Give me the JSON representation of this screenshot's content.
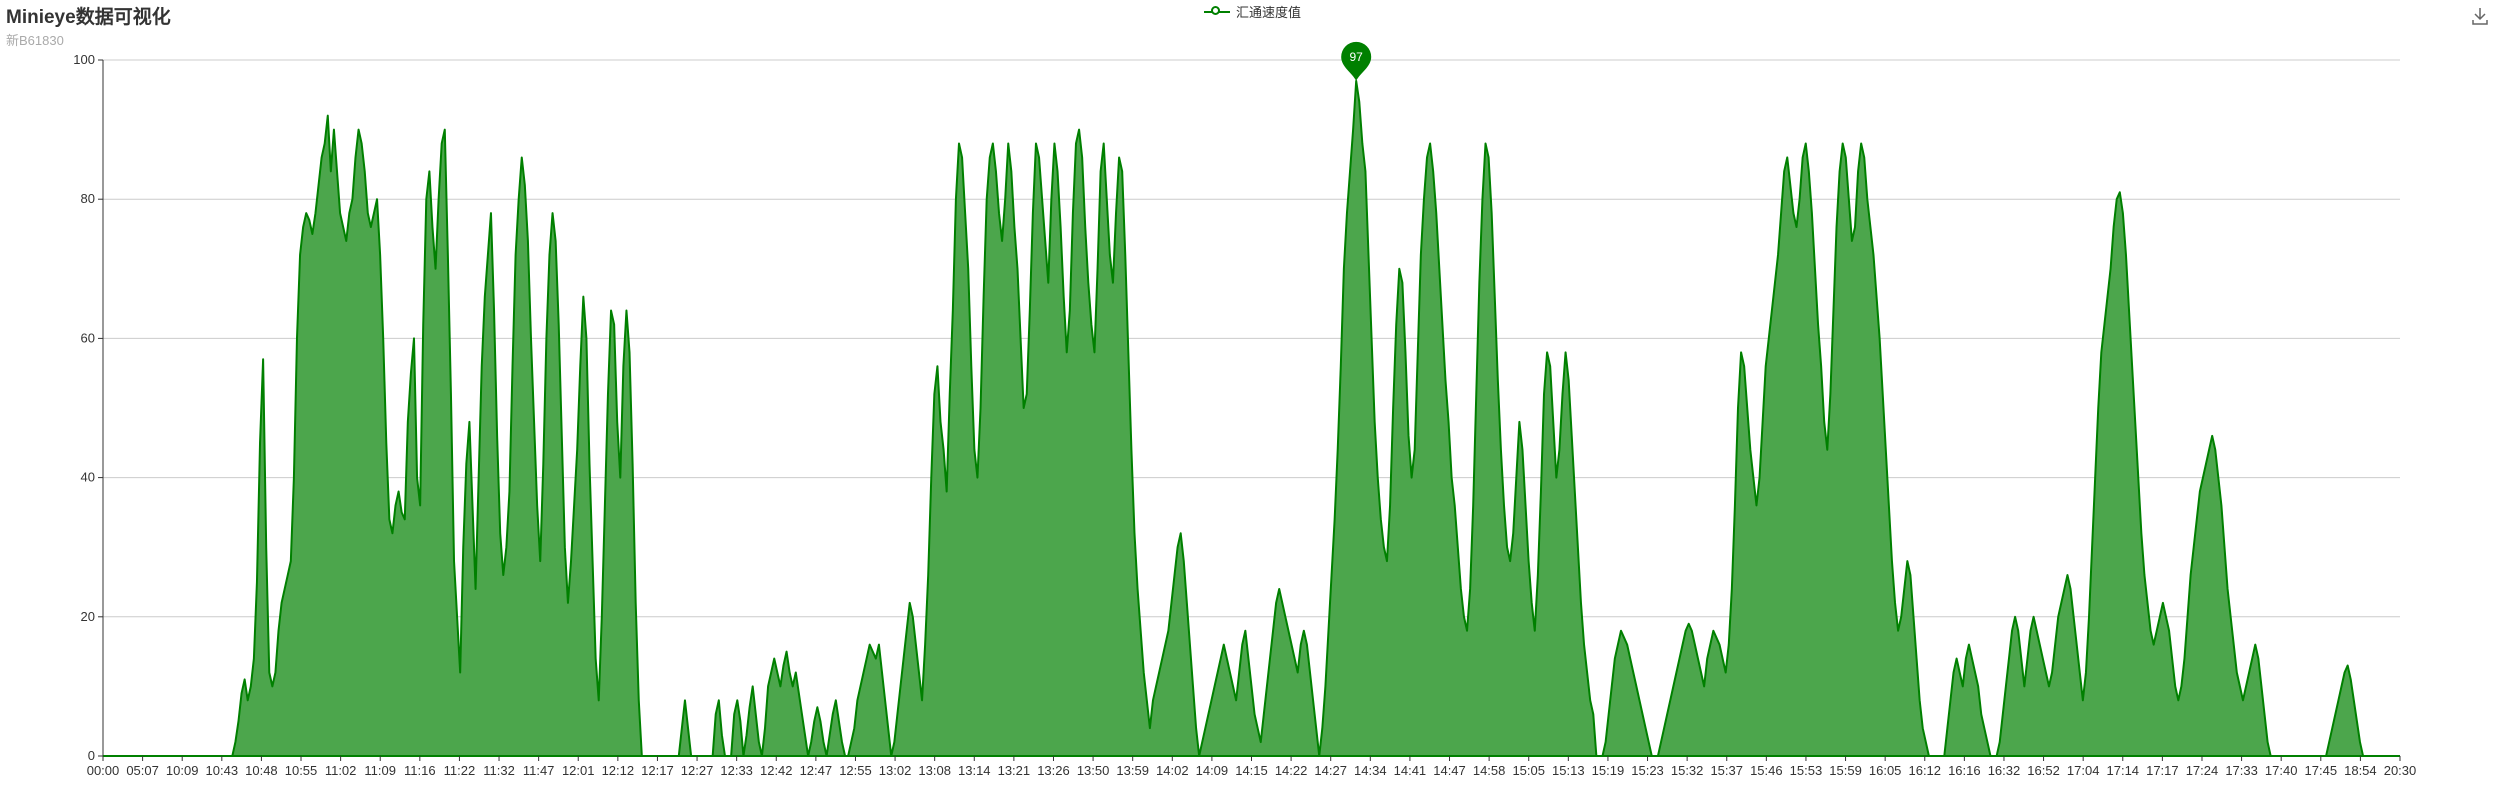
{
  "header": {
    "title": "Minieye数据可视化",
    "subtitle": "新B61830"
  },
  "legend": {
    "label": "汇通速度值"
  },
  "toolbar": {
    "download_icon": "download-icon"
  },
  "colors": {
    "series": "#008000",
    "area": "#4ca64c",
    "grid": "#cccccc",
    "axis": "#333333"
  },
  "chart_data": {
    "type": "area",
    "title": "",
    "xlabel": "",
    "ylabel": "",
    "ylim": [
      0,
      100
    ],
    "yticks": [
      0,
      20,
      40,
      60,
      80,
      100
    ],
    "grid": true,
    "legend_position": "top-center",
    "xtick_labels": [
      "00:00",
      "05:07",
      "10:09",
      "10:43",
      "10:48",
      "10:55",
      "11:02",
      "11:09",
      "11:16",
      "11:22",
      "11:32",
      "11:47",
      "12:01",
      "12:12",
      "12:17",
      "12:27",
      "12:33",
      "12:42",
      "12:47",
      "12:55",
      "13:02",
      "13:08",
      "13:14",
      "13:21",
      "13:26",
      "13:50",
      "13:59",
      "14:02",
      "14:09",
      "14:15",
      "14:22",
      "14:27",
      "14:34",
      "14:41",
      "14:47",
      "14:58",
      "15:05",
      "15:13",
      "15:19",
      "15:23",
      "15:32",
      "15:37",
      "15:46",
      "15:53",
      "15:59",
      "16:05",
      "16:12",
      "16:16",
      "16:32",
      "16:52",
      "17:04",
      "17:14",
      "17:17",
      "17:24",
      "17:33",
      "17:40",
      "17:45",
      "18:54",
      "20:30"
    ],
    "series": [
      {
        "name": "汇通速度值",
        "values": [
          0,
          0,
          0,
          0,
          0,
          0,
          0,
          0,
          0,
          0,
          0,
          0,
          0,
          0,
          0,
          0,
          0,
          0,
          0,
          0,
          0,
          0,
          0,
          0,
          0,
          0,
          0,
          0,
          0,
          0,
          0,
          0,
          0,
          0,
          0,
          0,
          0,
          0,
          0,
          0,
          0,
          0,
          0,
          2,
          5,
          9,
          11,
          8,
          10,
          14,
          25,
          45,
          57,
          30,
          12,
          10,
          12,
          18,
          22,
          24,
          26,
          28,
          40,
          60,
          72,
          76,
          78,
          77,
          75,
          78,
          82,
          86,
          88,
          92,
          84,
          90,
          84,
          78,
          76,
          74,
          78,
          80,
          86,
          90,
          88,
          84,
          78,
          76,
          78,
          80,
          72,
          60,
          45,
          34,
          32,
          36,
          38,
          35,
          34,
          48,
          55,
          60,
          40,
          36,
          62,
          80,
          84,
          76,
          70,
          80,
          88,
          90,
          72,
          52,
          28,
          20,
          12,
          30,
          42,
          48,
          36,
          24,
          40,
          56,
          66,
          72,
          78,
          64,
          46,
          32,
          26,
          30,
          38,
          56,
          72,
          80,
          86,
          82,
          74,
          60,
          48,
          36,
          28,
          42,
          60,
          72,
          78,
          74,
          62,
          46,
          30,
          22,
          28,
          36,
          44,
          56,
          66,
          60,
          42,
          28,
          14,
          8,
          20,
          36,
          52,
          64,
          62,
          48,
          40,
          56,
          64,
          58,
          42,
          22,
          8,
          0,
          0,
          0,
          0,
          0,
          0,
          0,
          0,
          0,
          0,
          0,
          0,
          0,
          4,
          8,
          4,
          0,
          0,
          0,
          0,
          0,
          0,
          0,
          0,
          6,
          8,
          3,
          0,
          0,
          0,
          6,
          8,
          5,
          0,
          3,
          7,
          10,
          6,
          2,
          0,
          4,
          10,
          12,
          14,
          12,
          10,
          13,
          15,
          12,
          10,
          12,
          9,
          6,
          3,
          0,
          2,
          5,
          7,
          5,
          2,
          0,
          3,
          6,
          8,
          5,
          2,
          0,
          0,
          2,
          4,
          8,
          10,
          12,
          14,
          16,
          15,
          14,
          16,
          12,
          8,
          4,
          0,
          2,
          6,
          10,
          14,
          18,
          22,
          20,
          16,
          12,
          8,
          16,
          26,
          40,
          52,
          56,
          48,
          44,
          38,
          52,
          64,
          80,
          88,
          86,
          78,
          70,
          56,
          44,
          40,
          50,
          66,
          80,
          86,
          88,
          84,
          78,
          74,
          80,
          88,
          84,
          76,
          70,
          60,
          50,
          52,
          64,
          78,
          88,
          86,
          80,
          74,
          68,
          80,
          88,
          84,
          76,
          66,
          58,
          64,
          78,
          88,
          90,
          86,
          76,
          68,
          62,
          58,
          70,
          84,
          88,
          80,
          72,
          68,
          78,
          86,
          84,
          72,
          58,
          44,
          32,
          24,
          18,
          12,
          8,
          4,
          8,
          10,
          12,
          14,
          16,
          18,
          22,
          26,
          30,
          32,
          28,
          22,
          16,
          10,
          4,
          0,
          2,
          4,
          6,
          8,
          10,
          12,
          14,
          16,
          14,
          12,
          10,
          8,
          12,
          16,
          18,
          14,
          10,
          6,
          4,
          2,
          6,
          10,
          14,
          18,
          22,
          24,
          22,
          20,
          18,
          16,
          14,
          12,
          16,
          18,
          16,
          12,
          8,
          4,
          0,
          4,
          10,
          18,
          26,
          34,
          44,
          56,
          70,
          78,
          84,
          90,
          97,
          94,
          88,
          84,
          72,
          60,
          48,
          40,
          34,
          30,
          28,
          36,
          50,
          62,
          70,
          68,
          58,
          46,
          40,
          44,
          58,
          72,
          80,
          86,
          88,
          84,
          78,
          70,
          62,
          54,
          48,
          40,
          36,
          30,
          24,
          20,
          18,
          24,
          36,
          52,
          68,
          80,
          88,
          86,
          78,
          66,
          54,
          44,
          36,
          30,
          28,
          32,
          40,
          48,
          44,
          36,
          28,
          22,
          18,
          26,
          38,
          52,
          58,
          56,
          48,
          40,
          44,
          52,
          58,
          54,
          46,
          38,
          30,
          22,
          16,
          12,
          8,
          6,
          0,
          0,
          0,
          2,
          6,
          10,
          14,
          16,
          18,
          17,
          16,
          14,
          12,
          10,
          8,
          6,
          4,
          2,
          0,
          0,
          0,
          2,
          4,
          6,
          8,
          10,
          12,
          14,
          16,
          18,
          19,
          18,
          16,
          14,
          12,
          10,
          14,
          16,
          18,
          17,
          16,
          14,
          12,
          16,
          24,
          36,
          50,
          58,
          56,
          50,
          44,
          40,
          36,
          40,
          48,
          56,
          60,
          64,
          68,
          72,
          78,
          84,
          86,
          82,
          78,
          76,
          80,
          86,
          88,
          84,
          78,
          70,
          62,
          56,
          48,
          44,
          52,
          64,
          76,
          84,
          88,
          86,
          80,
          74,
          76,
          84,
          88,
          86,
          80,
          76,
          72,
          66,
          60,
          52,
          44,
          36,
          28,
          22,
          18,
          20,
          24,
          28,
          26,
          20,
          14,
          8,
          4,
          2,
          0,
          0,
          0,
          0,
          0,
          0,
          4,
          8,
          12,
          14,
          12,
          10,
          14,
          16,
          14,
          12,
          10,
          6,
          4,
          2,
          0,
          0,
          0,
          2,
          6,
          10,
          14,
          18,
          20,
          18,
          14,
          10,
          14,
          18,
          20,
          18,
          16,
          14,
          12,
          10,
          12,
          16,
          20,
          22,
          24,
          26,
          24,
          20,
          16,
          12,
          8,
          12,
          20,
          30,
          40,
          50,
          58,
          62,
          66,
          70,
          76,
          80,
          81,
          78,
          72,
          64,
          56,
          48,
          40,
          32,
          26,
          22,
          18,
          16,
          18,
          20,
          22,
          20,
          18,
          14,
          10,
          8,
          10,
          14,
          20,
          26,
          30,
          34,
          38,
          40,
          42,
          44,
          46,
          44,
          40,
          36,
          30,
          24,
          20,
          16,
          12,
          10,
          8,
          10,
          12,
          14,
          16,
          14,
          10,
          6,
          2,
          0,
          0,
          0,
          0,
          0,
          0,
          0,
          0,
          0,
          0,
          0,
          0,
          0,
          0,
          0,
          0,
          0,
          0,
          0,
          2,
          4,
          6,
          8,
          10,
          12,
          13,
          11,
          8,
          5,
          2,
          0,
          0,
          0,
          0,
          0,
          0,
          0,
          0,
          0,
          0,
          0,
          0,
          0
        ]
      }
    ],
    "max_marker": {
      "label": "97",
      "value": 97
    }
  }
}
